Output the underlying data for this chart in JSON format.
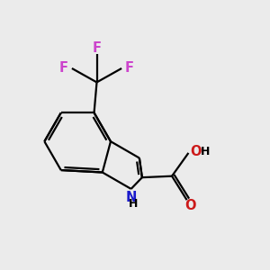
{
  "background_color": "#ebebeb",
  "bond_color": "#000000",
  "line_width": 1.6,
  "N_color": "#1a1acc",
  "O_color": "#cc1a1a",
  "F_color": "#cc44cc",
  "font_size_atom": 10.5,
  "font_size_H": 9.0,
  "figsize": [
    3.0,
    3.0
  ],
  "dpi": 100,
  "xlim": [
    0,
    10
  ],
  "ylim": [
    0,
    10
  ]
}
